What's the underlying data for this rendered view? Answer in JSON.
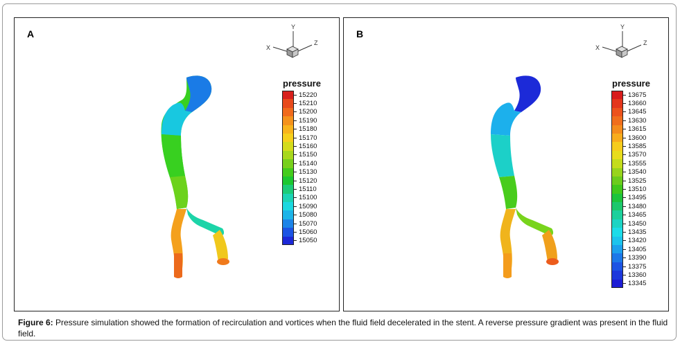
{
  "figure": {
    "caption_label": "Figure 6:",
    "caption_text": " Pressure simulation showed the formation of recirculation and vortices when the fluid field decelerated in the stent. A reverse pressure gradient was present in the fluid field."
  },
  "axes_labels": {
    "x": "X",
    "y": "Y",
    "z": "Z"
  },
  "panels": [
    {
      "label": "A",
      "legend_title": "pressure",
      "legend_values": [
        "15220",
        "15210",
        "15200",
        "15190",
        "15180",
        "15170",
        "15160",
        "15150",
        "15140",
        "15130",
        "15120",
        "15110",
        "15100",
        "15090",
        "15080",
        "15070",
        "15060",
        "15050"
      ],
      "legend_colors": [
        "#d8201c",
        "#e84a1c",
        "#f06a1c",
        "#f4921c",
        "#f8b41c",
        "#f6d01c",
        "#d4dc1c",
        "#a8d81c",
        "#78d01c",
        "#44cc1c",
        "#1cc830",
        "#1ccc78",
        "#1cd4b4",
        "#1cd8e0",
        "#1cb4e8",
        "#1c84e8",
        "#1c54e4",
        "#1c28d8"
      ],
      "vessel_colors": {
        "top": "#1a7be6",
        "upper": "#18c8e0",
        "mid": "#38d020",
        "lower": "#6cd21c",
        "fork": "#1cd4a8",
        "leftbranch": "#f4a01c",
        "leftend": "#ec6a1c",
        "rightbranch": "#f0c81c",
        "rightend": "#f07a1c"
      }
    },
    {
      "label": "B",
      "legend_title": "pressure",
      "legend_values": [
        "13675",
        "13660",
        "13645",
        "13630",
        "13615",
        "13600",
        "13585",
        "13570",
        "13555",
        "13540",
        "13525",
        "13510",
        "13495",
        "13480",
        "13465",
        "13450",
        "13435",
        "13420",
        "13405",
        "13390",
        "13375",
        "13360",
        "13345"
      ],
      "legend_colors": [
        "#d81c1c",
        "#e4361c",
        "#ec521c",
        "#f06e1c",
        "#f48c1c",
        "#f8ac1c",
        "#f6cc1c",
        "#e8dc1c",
        "#c4dc1c",
        "#98d41c",
        "#6ccc1c",
        "#40c81c",
        "#1cc43c",
        "#1cc86c",
        "#1cd09c",
        "#1cd4c4",
        "#1cdce8",
        "#1cc4ec",
        "#1ca0ec",
        "#1c78e8",
        "#1c54e4",
        "#1c38dc",
        "#1c1cd4"
      ],
      "vessel_colors": {
        "top": "#1c2ad8",
        "upper": "#1cb0ec",
        "mid": "#1cd0c8",
        "lower": "#48cc1c",
        "fork": "#78d41c",
        "leftbranch": "#f0b41c",
        "leftend": "#f49c1c",
        "rightbranch": "#f0a01c",
        "rightend": "#ec5c1c"
      }
    }
  ]
}
